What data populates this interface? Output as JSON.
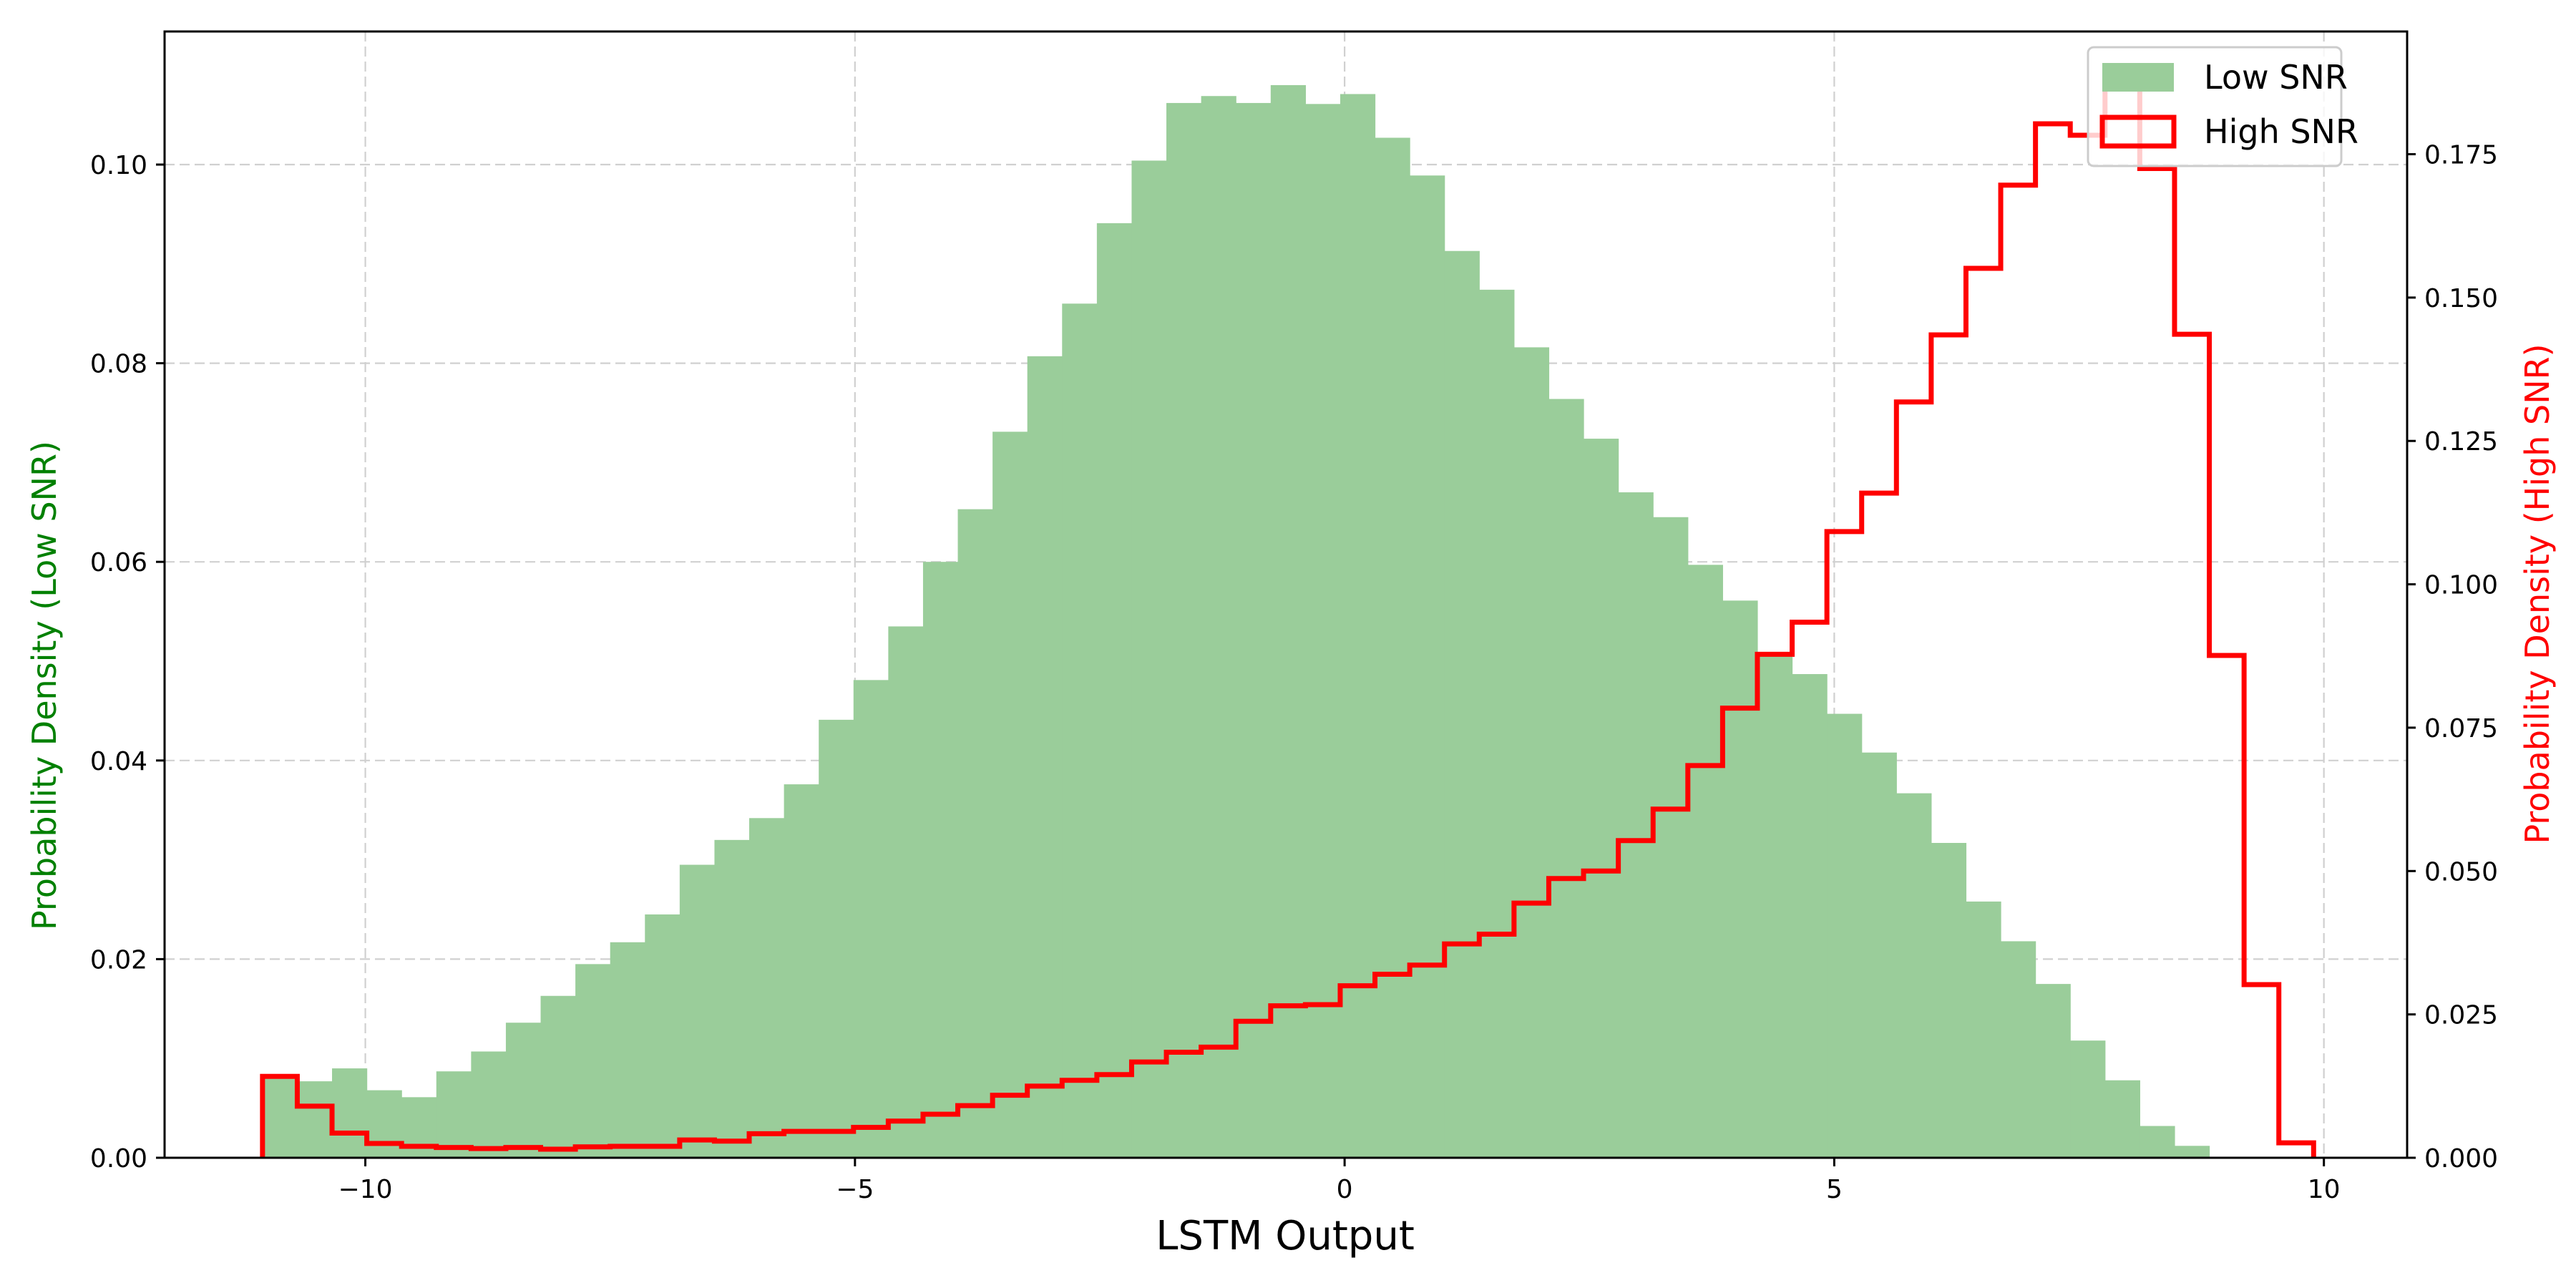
{
  "chart_data": {
    "type": "bar",
    "title": "",
    "xlabel": "LSTM Output",
    "ylabel_left": "Probability Density (Low SNR)",
    "ylabel_right": "Probability Density (High SNR)",
    "xlim": [
      -12.05,
      10.85
    ],
    "ylim_left": [
      0,
      0.1134
    ],
    "ylim_right": [
      0,
      0.1964
    ],
    "grid": true,
    "legend_position": "top-right",
    "x_ticks": [
      -10,
      -5,
      0,
      5,
      10
    ],
    "x_tick_labels": [
      "−10",
      "−5",
      "0",
      "5",
      "10"
    ],
    "y_left_ticks": [
      0,
      0.02,
      0.04,
      0.06,
      0.08,
      0.1
    ],
    "y_left_tick_labels": [
      "0.00",
      "0.02",
      "0.04",
      "0.06",
      "0.08",
      "0.10"
    ],
    "y_right_ticks": [
      0,
      0.025,
      0.05,
      0.075,
      0.1,
      0.125,
      0.15,
      0.175
    ],
    "y_right_tick_labels": [
      "0.000",
      "0.025",
      "0.050",
      "0.075",
      "0.100",
      "0.125",
      "0.150",
      "0.175"
    ],
    "series": [
      {
        "name": "Low SNR",
        "kind": "filled-histogram",
        "axis": "left",
        "color": "#9ACD9A",
        "bin_start": -11.05,
        "bin_width": 0.355,
        "values": [
          0.0082,
          0.0077,
          0.009,
          0.0068,
          0.0061,
          0.0087,
          0.0107,
          0.0136,
          0.0163,
          0.0195,
          0.0217,
          0.0245,
          0.0295,
          0.032,
          0.0342,
          0.0376,
          0.0441,
          0.0481,
          0.0535,
          0.06,
          0.0653,
          0.0731,
          0.0807,
          0.086,
          0.0941,
          0.1004,
          0.1062,
          0.1069,
          0.1062,
          0.108,
          0.1061,
          0.1071,
          0.1027,
          0.0989,
          0.0913,
          0.0874,
          0.0816,
          0.0764,
          0.0724,
          0.067,
          0.0645,
          0.0597,
          0.0561,
          0.0509,
          0.0487,
          0.0447,
          0.0408,
          0.0367,
          0.0317,
          0.0258,
          0.0218,
          0.0175,
          0.0118,
          0.0078,
          0.0032,
          0.0012
        ]
      },
      {
        "name": "High SNR",
        "kind": "step-histogram",
        "axis": "right",
        "color": "#FF0000",
        "bin_start": -11.05,
        "bin_width": 0.355,
        "values": [
          0.0142,
          0.009,
          0.0043,
          0.0025,
          0.002,
          0.0018,
          0.0016,
          0.0018,
          0.0015,
          0.0019,
          0.002,
          0.002,
          0.0031,
          0.0029,
          0.0042,
          0.0046,
          0.0046,
          0.0053,
          0.0064,
          0.0076,
          0.0091,
          0.0109,
          0.0125,
          0.0135,
          0.0145,
          0.0167,
          0.0184,
          0.0193,
          0.0238,
          0.0265,
          0.0267,
          0.03,
          0.032,
          0.0336,
          0.0373,
          0.039,
          0.0444,
          0.0487,
          0.05,
          0.0553,
          0.0608,
          0.0684,
          0.0784,
          0.0878,
          0.0934,
          0.1092,
          0.1159,
          0.1318,
          0.1435,
          0.1551,
          0.1696,
          0.1803,
          0.1783,
          0.1874,
          0.1725,
          0.1436,
          0.0876,
          0.0302,
          0.0026
        ]
      }
    ]
  }
}
